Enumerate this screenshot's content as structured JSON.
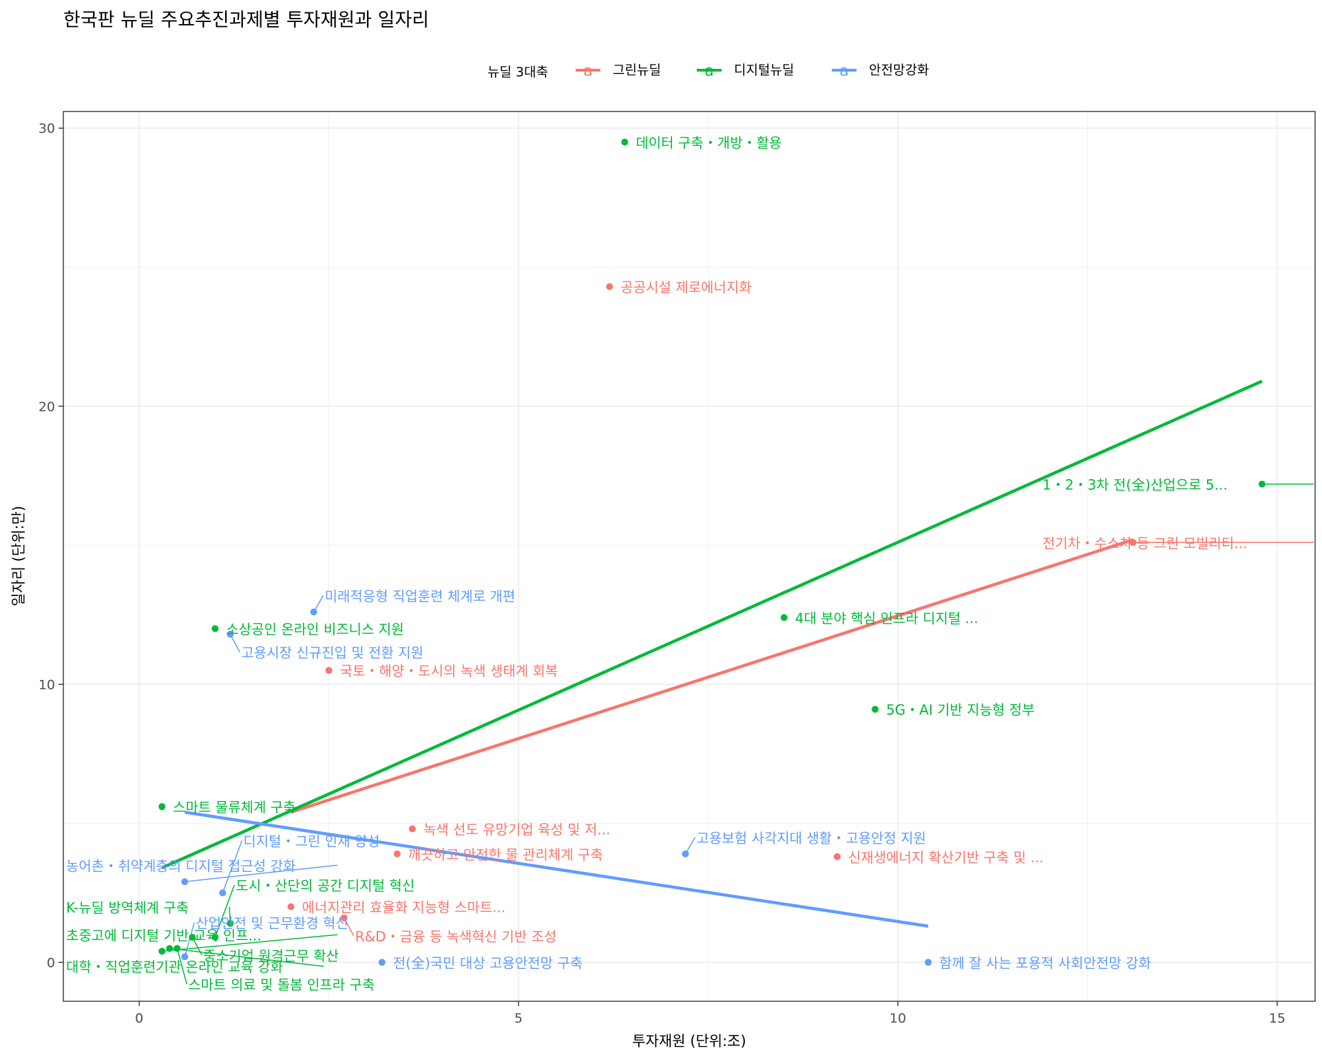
{
  "chart_data": {
    "type": "scatter",
    "title": "한국판 뉴딜 주요추진과제별 투자재원과 일자리",
    "xlabel": "투자재원 (단위:조)",
    "ylabel": "일자리 (단위:만)",
    "xlim": [
      -1.0,
      15.5
    ],
    "ylim": [
      -1.4,
      30.6
    ],
    "x_ticks": [
      0,
      5,
      10,
      15
    ],
    "y_ticks": [
      0,
      10,
      20,
      30
    ],
    "grid": true,
    "legend_position": "top",
    "legend_title": "뉴딜 3대축",
    "legend_key_glyph": "a",
    "series": [
      {
        "name": "그린뉴딜",
        "color": "#F8766D",
        "points": [
          {
            "x": 6.2,
            "y": 24.3,
            "label": "공공시설 제로에너지화"
          },
          {
            "x": 13.1,
            "y": 15.1,
            "label": "전기차・수소차 등 그린 모빌리티..."
          },
          {
            "x": 2.5,
            "y": 10.5,
            "label": "국토・해양・도시의 녹색 생태계 회복"
          },
          {
            "x": 3.6,
            "y": 4.8,
            "label": "녹색 선도 유망기업 육성 및 저..."
          },
          {
            "x": 3.4,
            "y": 3.9,
            "label": "깨끗하고 안전한 물 관리체계 구축"
          },
          {
            "x": 9.2,
            "y": 3.8,
            "label": "신재생에너지 확산기반 구축 및 ..."
          },
          {
            "x": 2.0,
            "y": 2.0,
            "label": "에너지관리 효율화 지능형 스마트..."
          },
          {
            "x": 2.7,
            "y": 1.6,
            "label": "R&D・금융 등 녹색혁신 기반 조성"
          }
        ],
        "trend": {
          "x": [
            2.0,
            13.1
          ],
          "y": [
            5.4,
            15.2
          ]
        }
      },
      {
        "name": "디지털뉴딜",
        "color": "#00BA38",
        "points": [
          {
            "x": 6.4,
            "y": 29.5,
            "label": "데이터 구축・개방・활용"
          },
          {
            "x": 14.8,
            "y": 17.2,
            "label": "1・2・3차 전(全)산업으로 5..."
          },
          {
            "x": 8.5,
            "y": 12.4,
            "label": "4대 분야 핵심 인프라 디지털 ..."
          },
          {
            "x": 1.0,
            "y": 12.0,
            "label": "소상공인 온라인 비즈니스 지원"
          },
          {
            "x": 9.7,
            "y": 9.1,
            "label": "5G・AI 기반 지능형 정부"
          },
          {
            "x": 0.3,
            "y": 5.6,
            "label": "스마트 물류체계 구축"
          },
          {
            "x": 0.7,
            "y": 0.9,
            "label": "중소기업 원격근무 확산"
          },
          {
            "x": 0.5,
            "y": 0.5,
            "label": "스마트 의료 및 돌봄 인프라 구축"
          },
          {
            "x": 1.0,
            "y": 0.9,
            "label": "도시・산단의 공간 디지털 혁신"
          },
          {
            "x": 0.3,
            "y": 0.4,
            "label": "초중고에 디지털 기반 교육 인프..."
          },
          {
            "x": 1.2,
            "y": 1.4,
            "label": "K-뉴딜 방역체계 구축"
          },
          {
            "x": 0.4,
            "y": 0.5,
            "label": "대학・직업훈련기관 온라인 교육 강화"
          }
        ],
        "trend": {
          "x": [
            0.3,
            14.8
          ],
          "y": [
            3.4,
            20.9
          ]
        }
      },
      {
        "name": "안전망강화",
        "color": "#619CFF",
        "points": [
          {
            "x": 2.3,
            "y": 12.6,
            "label": "미래적응형 직업훈련 체계로 개편"
          },
          {
            "x": 1.2,
            "y": 11.8,
            "label": "고용시장 신규진입 및 전환 지원"
          },
          {
            "x": 7.2,
            "y": 3.9,
            "label": "고용보험 사각지대 생활・고용안정 지원"
          },
          {
            "x": 0.6,
            "y": 2.9,
            "label": "농어촌・취약계층의 디지털 접근성 강화"
          },
          {
            "x": 1.1,
            "y": 2.5,
            "label": "디지털・그린 인재 양성"
          },
          {
            "x": 3.2,
            "y": 0.0,
            "label": "전(全)국민 대상 고용안전망 구축"
          },
          {
            "x": 10.4,
            "y": 0.0,
            "label": "함께 잘 사는 포용적 사회안전망 강화"
          },
          {
            "x": 0.6,
            "y": 0.2,
            "label": "산업안전 및 근무환경 혁신"
          }
        ],
        "trend": {
          "x": [
            0.6,
            10.4
          ],
          "y": [
            5.4,
            1.3
          ]
        }
      }
    ]
  }
}
